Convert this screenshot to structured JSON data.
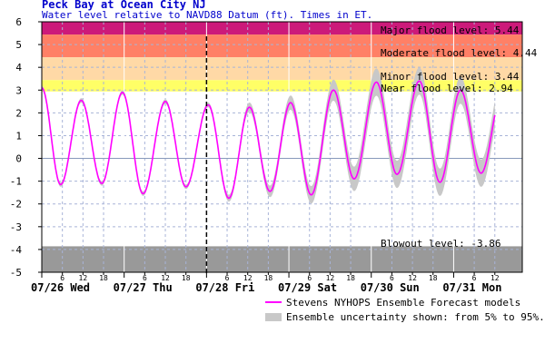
{
  "chart_data": {
    "type": "line",
    "title": "Peck Bay at Ocean City NJ",
    "subtitle": "Water level relative to NAVD88 Datum (ft). Times in ET.",
    "ylim": [
      -5,
      6
    ],
    "yticks": [
      -5,
      -4,
      -3,
      -2,
      -1,
      0,
      1,
      2,
      3,
      4,
      5,
      6
    ],
    "x_range_hours": [
      0,
      132
    ],
    "hour_tick_labels": [
      "6",
      "12",
      "18"
    ],
    "day_labels": [
      {
        "hour": 0,
        "label": "07/26 Wed"
      },
      {
        "hour": 24,
        "label": "07/27 Thu"
      },
      {
        "hour": 48,
        "label": "07/28 Fri"
      },
      {
        "hour": 72,
        "label": "07/29 Sat"
      },
      {
        "hour": 96,
        "label": "07/30 Sun"
      },
      {
        "hour": 120,
        "label": "07/31 Mon"
      }
    ],
    "now_hour": 48,
    "grid": true,
    "levels": [
      {
        "name": "major",
        "label": "Major flood level: 5.44",
        "value": 5.44,
        "color": "#cc1a7a"
      },
      {
        "name": "moderate",
        "label": "Moderate flood level: 4.44",
        "value": 4.44,
        "color": "#ff8066"
      },
      {
        "name": "minor",
        "label": "Minor flood level: 3.44",
        "value": 3.44,
        "color": "#ffd9a6"
      },
      {
        "name": "near",
        "label": "Near flood level: 2.94",
        "value": 2.94,
        "color": "#ffff66"
      },
      {
        "name": "blowout",
        "label": "Blowout level: -3.86",
        "value": -3.86,
        "color": "#999999"
      }
    ],
    "series": [
      {
        "name": "Stevens NYHOPS Ensemble Forecast models",
        "color": "#ff00ff",
        "points": [
          [
            0,
            3.1
          ],
          [
            5.5,
            -1.15
          ],
          [
            11.5,
            2.55
          ],
          [
            17.5,
            -1.1
          ],
          [
            23.5,
            2.9
          ],
          [
            29.5,
            -1.55
          ],
          [
            36,
            2.5
          ],
          [
            42,
            -1.25
          ],
          [
            48.5,
            2.35
          ],
          [
            54.5,
            -1.75
          ],
          [
            60.5,
            2.25
          ],
          [
            66.5,
            -1.45
          ],
          [
            72.5,
            2.45
          ],
          [
            78.5,
            -1.6
          ],
          [
            85,
            3.0
          ],
          [
            91,
            -0.9
          ],
          [
            97.5,
            3.35
          ],
          [
            103.5,
            -0.7
          ],
          [
            110,
            3.4
          ],
          [
            116,
            -1.05
          ],
          [
            122,
            3.0
          ],
          [
            128,
            -0.65
          ],
          [
            134,
            2.75
          ],
          [
            140,
            -0.55
          ]
        ]
      }
    ],
    "uncertainty_halfwidth": [
      [
        0,
        0.1
      ],
      [
        48,
        0.1
      ],
      [
        66,
        0.25
      ],
      [
        76,
        0.35
      ],
      [
        96,
        0.6
      ],
      [
        110,
        0.6
      ],
      [
        140,
        0.6
      ]
    ],
    "legend": [
      {
        "label": "Stevens NYHOPS Ensemble Forecast models",
        "kind": "line",
        "color": "#ff00ff"
      },
      {
        "label": "Ensemble uncertainty shown: from 5% to 95%.",
        "kind": "band",
        "color": "#c8c8c8"
      }
    ]
  }
}
